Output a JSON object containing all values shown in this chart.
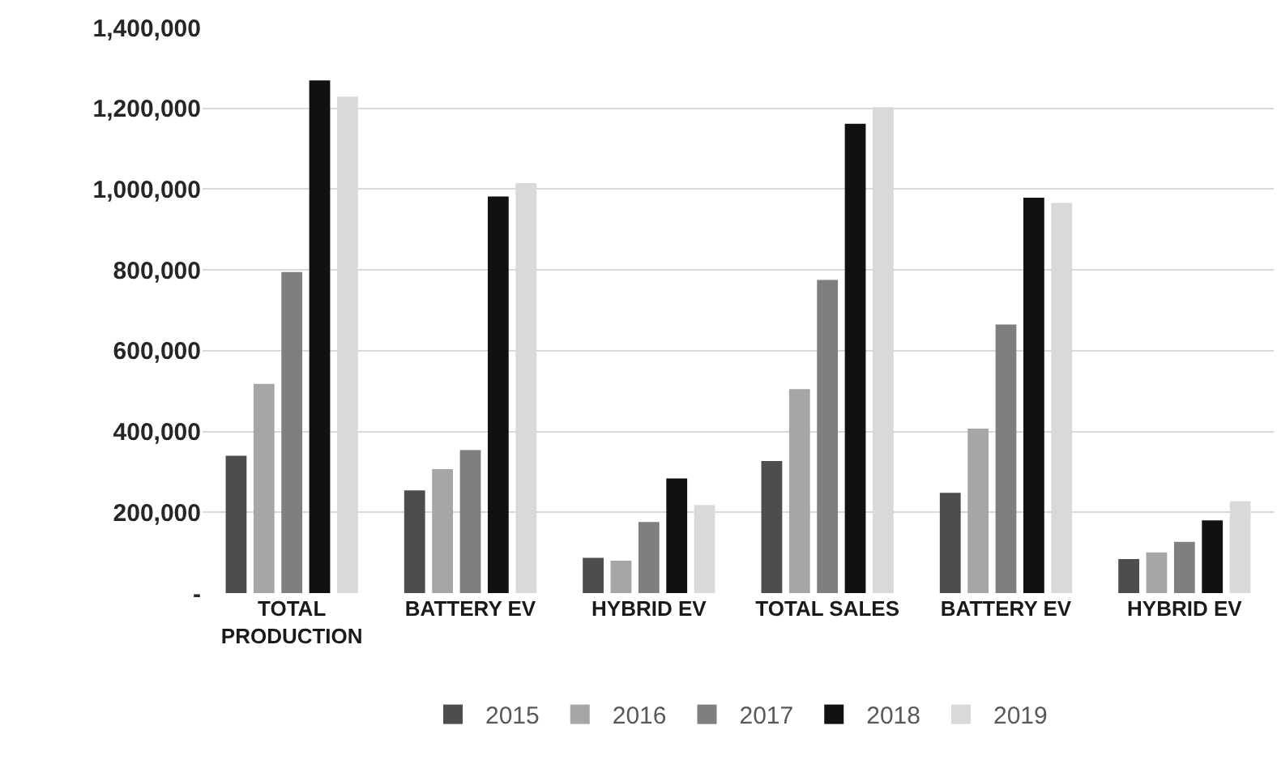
{
  "chart_data": {
    "type": "bar",
    "categories": [
      "TOTAL PRODUCTION",
      "BATTERY EV",
      "HYBRID EV",
      "TOTAL SALES",
      "BATTERY EV",
      "HYBRID EV"
    ],
    "series": [
      {
        "name": "2015",
        "color": "#4d4d4d",
        "values": [
          340000,
          254000,
          87000,
          327000,
          248000,
          84000
        ]
      },
      {
        "name": "2016",
        "color": "#a6a6a6",
        "values": [
          518000,
          307000,
          80000,
          505000,
          407000,
          101000
        ]
      },
      {
        "name": "2017",
        "color": "#7f7f7f",
        "values": [
          795000,
          354000,
          176000,
          775000,
          665000,
          127000
        ]
      },
      {
        "name": "2018",
        "color": "#111111",
        "values": [
          1269000,
          982000,
          284000,
          1162000,
          979000,
          180000
        ]
      },
      {
        "name": "2019",
        "color": "#d9d9d9",
        "values": [
          1229000,
          1015000,
          218000,
          1203000,
          966000,
          227000
        ]
      }
    ],
    "ylim": [
      0,
      1400000
    ],
    "yticks": [
      {
        "value": 0,
        "label": "-"
      },
      {
        "value": 200000,
        "label": "200,000"
      },
      {
        "value": 400000,
        "label": "400,000"
      },
      {
        "value": 600000,
        "label": "600,000"
      },
      {
        "value": 800000,
        "label": "800,000"
      },
      {
        "value": 1000000,
        "label": "1,000,000"
      },
      {
        "value": 1200000,
        "label": "1,200,000"
      },
      {
        "value": 1400000,
        "label": "1,400,000"
      }
    ],
    "grid": "y",
    "legend": "bottom"
  }
}
